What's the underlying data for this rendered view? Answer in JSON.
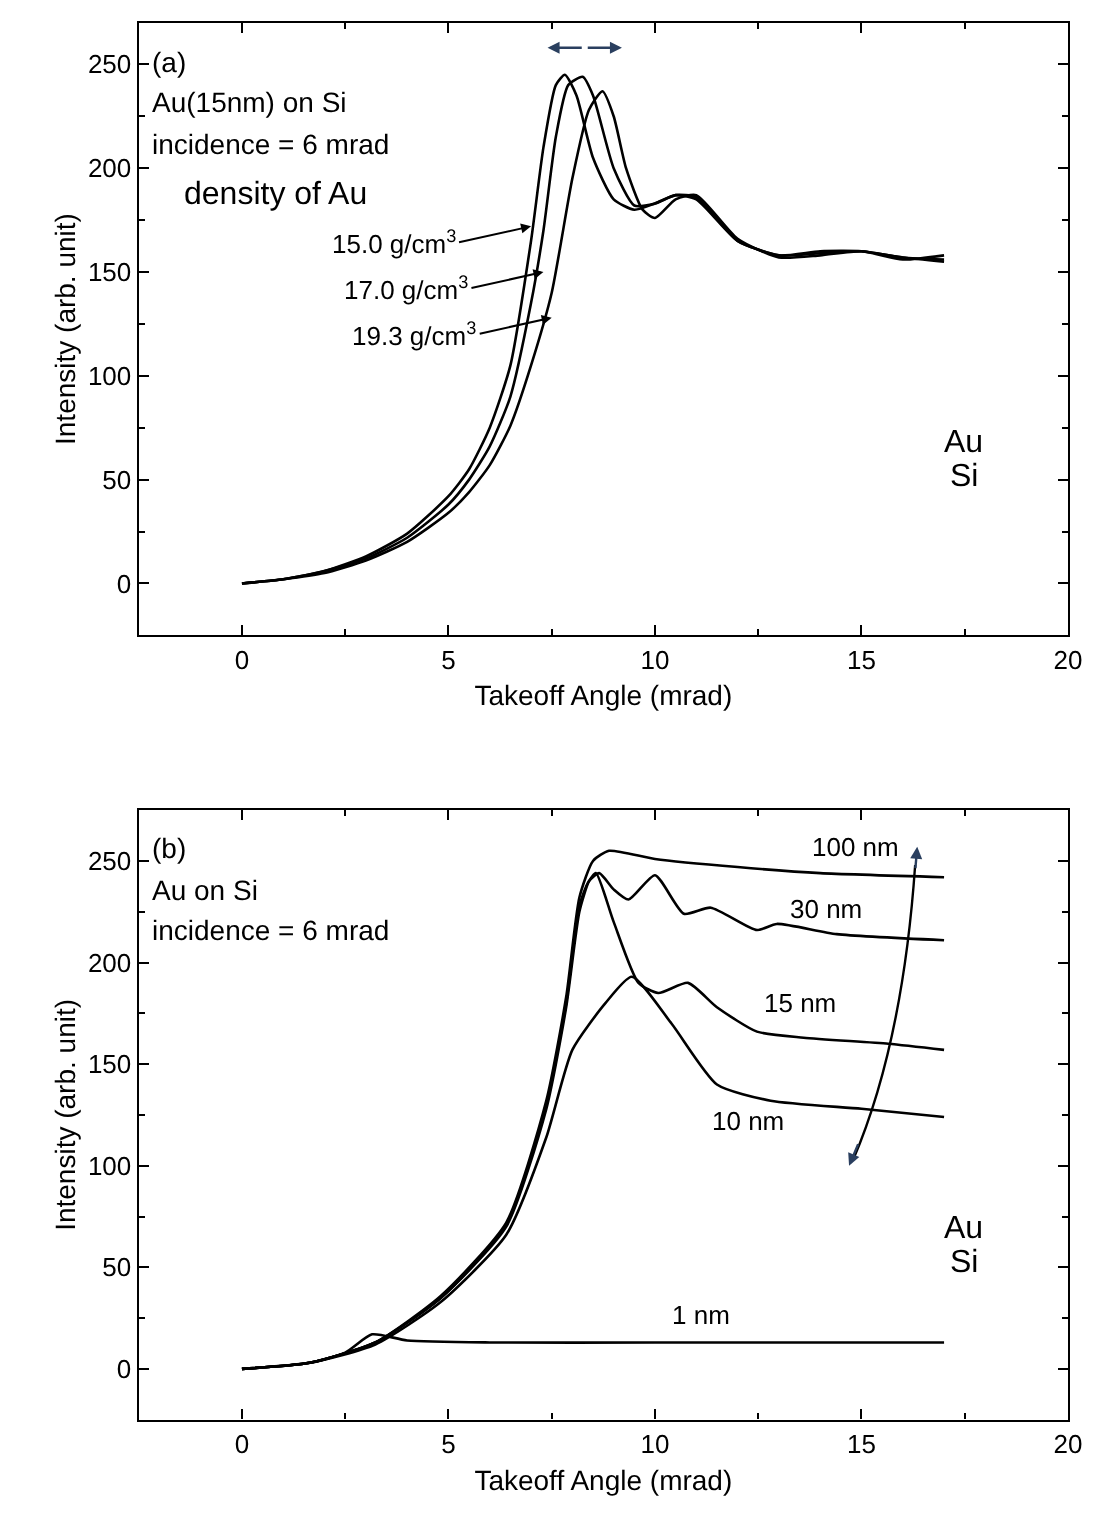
{
  "chart_data": [
    {
      "type": "line",
      "xlabel": "Takeoff Angle (mrad)",
      "ylabel": "Intensity (arb. unit)",
      "xlim": [
        -2.5,
        20
      ],
      "ylim": [
        -25,
        270
      ],
      "xticks": [
        0,
        5,
        10,
        15,
        20
      ],
      "yticks": [
        0,
        50,
        100,
        150,
        200,
        250
      ],
      "marker": "none",
      "line_style": "solid",
      "series": [
        {
          "color": "#000000",
          "x": [
            0,
            1,
            2,
            3,
            4,
            5,
            5.5,
            6,
            6.5,
            7,
            7.3,
            7.6,
            7.82,
            8.1,
            8.5,
            9,
            9.5,
            10,
            10.5,
            11,
            12,
            13,
            14,
            15,
            16,
            17
          ],
          "values": [
            0,
            2,
            6,
            13,
            24,
            42,
            55,
            75,
            105,
            165,
            210,
            240,
            245,
            235,
            205,
            185,
            180,
            183,
            187,
            185,
            165,
            158,
            160,
            160,
            157,
            155
          ]
        },
        {
          "color": "#000000",
          "x": [
            0,
            1,
            2,
            3,
            4,
            5,
            5.5,
            6,
            6.5,
            7,
            7.3,
            7.6,
            7.9,
            8.25,
            8.5,
            9,
            9.5,
            10,
            10.5,
            11,
            12,
            13,
            14,
            15,
            16,
            17
          ],
          "values": [
            0,
            2,
            6,
            12,
            22,
            38,
            50,
            66,
            90,
            135,
            170,
            215,
            240,
            244,
            235,
            200,
            182,
            183,
            187,
            186,
            165,
            158,
            159,
            160,
            157,
            156
          ]
        },
        {
          "color": "#000000",
          "x": [
            0,
            1,
            2,
            3,
            4,
            5,
            5.5,
            6,
            6.5,
            7,
            7.5,
            8,
            8.4,
            8.73,
            9,
            9.3,
            9.7,
            10,
            10.5,
            11,
            12,
            13,
            14,
            15,
            16,
            17
          ],
          "values": [
            0,
            2,
            5,
            11,
            20,
            34,
            44,
            57,
            76,
            105,
            140,
            195,
            228,
            237,
            225,
            200,
            180,
            176,
            185,
            187,
            166,
            157,
            158,
            160,
            156,
            158
          ]
        }
      ],
      "annotations": [
        "(a)",
        "Au(15nm) on Si",
        "incidence = 6 mrad",
        "density of Au",
        "Au",
        "Si",
        {
          "text": "15.0 g/cm$^{3}$",
          "x": 7.0,
          "y": 172
        },
        {
          "text": "17.0 g/cm$^{3}$",
          "x": 7.3,
          "y": 150
        },
        {
          "text": "19.3 g/cm$^{3}$",
          "x": 7.5,
          "y": 128
        }
      ]
    },
    {
      "type": "line",
      "xlabel": "Takeoff Angle (mrad)",
      "ylabel": "Intensity (arb. unit)",
      "xlim": [
        -2.5,
        20
      ],
      "ylim": [
        -25,
        275
      ],
      "xticks": [
        0,
        5,
        10,
        15,
        20
      ],
      "yticks": [
        0,
        50,
        100,
        150,
        200,
        250
      ],
      "marker": "none",
      "line_style": "solid",
      "series": [
        {
          "color": "#000000",
          "x": [
            0,
            1.64,
            3.23,
            4.82,
            6.4,
            7.37,
            7.85,
            8.17,
            8.5,
            8.89,
            10,
            12,
            14,
            17
          ],
          "values": [
            0,
            3,
            13,
            36,
            72,
            132,
            183,
            232,
            250,
            255,
            251,
            247,
            244,
            242
          ]
        },
        {
          "color": "#000000",
          "x": [
            0,
            1.64,
            3.23,
            4.82,
            6.4,
            7.37,
            7.85,
            8.17,
            8.4,
            8.65,
            9.0,
            9.36,
            10.0,
            10.7,
            11.35,
            12.47,
            12.95,
            14.4,
            17
          ],
          "values": [
            0,
            3,
            13,
            35,
            71,
            130,
            180,
            228,
            240,
            244,
            236,
            231,
            243,
            224,
            227,
            216,
            219,
            214,
            211
          ]
        },
        {
          "color": "#000000",
          "x": [
            0,
            1.64,
            3.23,
            4.82,
            6.4,
            7.37,
            7.85,
            8.17,
            8.4,
            8.57,
            9.0,
            9.6,
            10.08,
            10.8,
            11.5,
            12.47,
            13.6,
            15.65,
            17
          ],
          "values": [
            0,
            3,
            13,
            35,
            70,
            128,
            178,
            225,
            240,
            244,
            220,
            190,
            185,
            190,
            178,
            166,
            163,
            160,
            157
          ]
        },
        {
          "color": "#000000",
          "x": [
            0,
            1.64,
            3.23,
            4.82,
            6.4,
            7.37,
            8.0,
            8.8,
            9.44,
            10.4,
            11.5,
            12.8,
            15,
            17
          ],
          "values": [
            0,
            3,
            12,
            33,
            66,
            114,
            157,
            180,
            193,
            170,
            140,
            132,
            128,
            124
          ]
        },
        {
          "color": "#000000",
          "x": [
            0,
            1.64,
            2.5,
            3.15,
            4,
            6,
            10,
            14,
            17
          ],
          "values": [
            0,
            3,
            8,
            17,
            14,
            13,
            13,
            13,
            13
          ]
        }
      ],
      "annotations": [
        "(b)",
        "Au on Si",
        "incidence = 6 mrad",
        "100 nm",
        "30 nm",
        "15 nm",
        "10 nm",
        "1 nm",
        "Au",
        "Si"
      ]
    }
  ]
}
